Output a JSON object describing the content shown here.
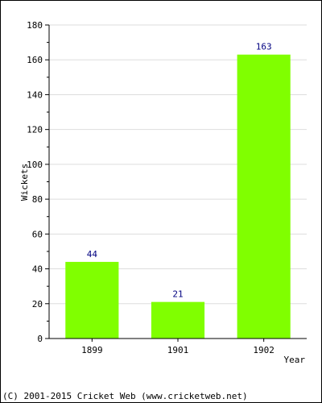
{
  "chart_data": {
    "type": "bar",
    "categories": [
      "1899",
      "1901",
      "1902"
    ],
    "values": [
      44,
      21,
      163
    ],
    "title": "",
    "xlabel": "Year",
    "ylabel": "Wickets",
    "ylim": [
      0,
      180
    ],
    "y_ticks": [
      0,
      20,
      40,
      60,
      80,
      100,
      120,
      140,
      160,
      180
    ],
    "grid": true,
    "bar_color": "#80ff00",
    "data_label_color": "#000080",
    "legend": "none"
  },
  "footer": {
    "copyright": "(C) 2001-2015 Cricket Web (www.cricketweb.net)"
  }
}
